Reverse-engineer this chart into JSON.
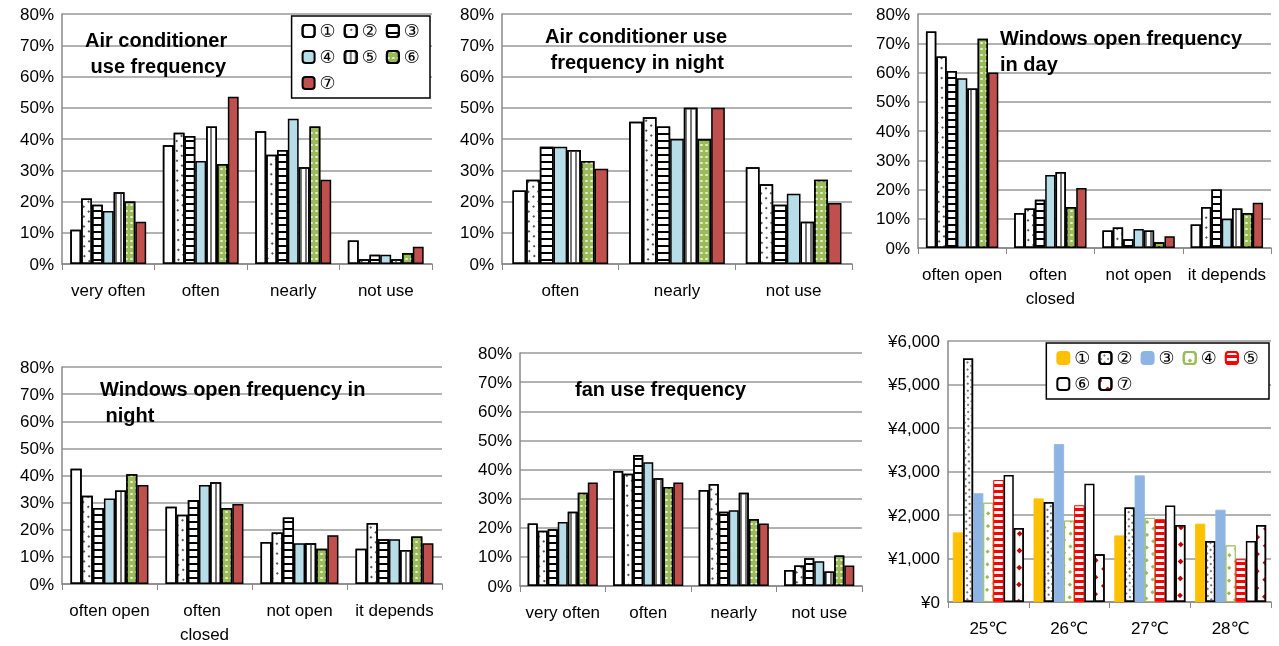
{
  "chart_data": [
    {
      "type": "bar",
      "title": "Air conditioner use frequency",
      "categories": [
        "very often",
        "often",
        "nearly",
        "not use"
      ],
      "series": [
        {
          "name": "①",
          "color": "#ffffff",
          "values": [
            11,
            38,
            42.5,
            7.5
          ]
        },
        {
          "name": "②",
          "color": "#ffffff",
          "values": [
            21,
            42,
            35,
            1.5
          ]
        },
        {
          "name": "③",
          "color": "#ffffff",
          "values": [
            19,
            41,
            36.5,
            3
          ]
        },
        {
          "name": "④",
          "color": "#b7dde8",
          "values": [
            17,
            33,
            46.5,
            3
          ]
        },
        {
          "name": "⑤",
          "color": "#ffffff",
          "values": [
            23,
            44,
            31,
            1.5
          ]
        },
        {
          "name": "⑥",
          "color": "#9bbb59",
          "values": [
            20,
            32,
            44,
            3.5
          ]
        },
        {
          "name": "⑦",
          "color": "#c0504d",
          "values": [
            13.5,
            53.5,
            27,
            5.5
          ]
        }
      ],
      "ylim": [
        0,
        80
      ],
      "yticks": [
        {
          "value": 0,
          "label": "0%"
        },
        {
          "value": 10,
          "label": "10%"
        },
        {
          "value": 20,
          "label": "20%"
        },
        {
          "value": 30,
          "label": "30%"
        },
        {
          "value": 40,
          "label": "40%"
        },
        {
          "value": 50,
          "label": "50%"
        },
        {
          "value": 60,
          "label": "60%"
        },
        {
          "value": 70,
          "label": "70%"
        },
        {
          "value": 80,
          "label": "80%"
        }
      ],
      "grid": "y",
      "legend": "top right"
    },
    {
      "type": "bar",
      "title": "Air conditioner use frequency in night",
      "categories": [
        "often",
        "nearly",
        "not use"
      ],
      "series": [
        {
          "color": "#ffffff",
          "values": [
            23.5,
            45.5,
            31
          ]
        },
        {
          "color": "#ffffff",
          "values": [
            27,
            47,
            25.5
          ]
        },
        {
          "color": "#ffffff",
          "values": [
            37.5,
            44,
            19
          ]
        },
        {
          "color": "#b7dde8",
          "values": [
            37.5,
            40,
            22.5
          ]
        },
        {
          "color": "#ffffff",
          "values": [
            36.5,
            50,
            13.5
          ]
        },
        {
          "color": "#9bbb59",
          "values": [
            33,
            40,
            27
          ]
        },
        {
          "color": "#c0504d",
          "values": [
            30.5,
            50,
            19.5
          ]
        }
      ],
      "ylim": [
        0,
        80
      ],
      "yticks": [
        {
          "value": 0,
          "label": "0%"
        },
        {
          "value": 10,
          "label": "10%"
        },
        {
          "value": 20,
          "label": "20%"
        },
        {
          "value": 30,
          "label": "30%"
        },
        {
          "value": 40,
          "label": "40%"
        },
        {
          "value": 50,
          "label": "50%"
        },
        {
          "value": 60,
          "label": "60%"
        },
        {
          "value": 70,
          "label": "70%"
        },
        {
          "value": 80,
          "label": "80%"
        }
      ],
      "grid": "y"
    },
    {
      "type": "bar",
      "title": "Windows open frequency in day",
      "categories": [
        "often open",
        "often closed",
        "not open",
        "it depends"
      ],
      "series": [
        {
          "color": "#ffffff",
          "values": [
            74,
            12,
            6,
            8
          ]
        },
        {
          "color": "#ffffff",
          "values": [
            65.5,
            13.5,
            7,
            14
          ]
        },
        {
          "color": "#ffffff",
          "values": [
            60.5,
            16.5,
            3,
            20
          ]
        },
        {
          "color": "#b7dde8",
          "values": [
            58,
            25,
            6.5,
            10
          ]
        },
        {
          "color": "#ffffff",
          "values": [
            54.5,
            26,
            6,
            13.5
          ]
        },
        {
          "color": "#9bbb59",
          "values": [
            71.5,
            14,
            2,
            12
          ]
        },
        {
          "color": "#c0504d",
          "values": [
            60,
            20.5,
            4,
            15.5
          ]
        }
      ],
      "ylim": [
        0,
        80
      ],
      "yticks": [
        {
          "value": 0,
          "label": "0%"
        },
        {
          "value": 10,
          "label": "10%"
        },
        {
          "value": 20,
          "label": "20%"
        },
        {
          "value": 30,
          "label": "30%"
        },
        {
          "value": 40,
          "label": "40%"
        },
        {
          "value": 50,
          "label": "50%"
        },
        {
          "value": 60,
          "label": "60%"
        },
        {
          "value": 70,
          "label": "70%"
        },
        {
          "value": 80,
          "label": "80%"
        }
      ],
      "grid": "y"
    },
    {
      "type": "bar",
      "title": "Windows open frequency in night",
      "categories": [
        "often open",
        "often closed",
        "not open",
        "it depends"
      ],
      "series": [
        {
          "color": "#ffffff",
          "values": [
            42.5,
            28.5,
            15.5,
            13
          ]
        },
        {
          "color": "#ffffff",
          "values": [
            32.5,
            25.5,
            19,
            22.5
          ]
        },
        {
          "color": "#ffffff",
          "values": [
            28,
            31,
            24.5,
            16.5
          ]
        },
        {
          "color": "#b7dde8",
          "values": [
            31.5,
            36.5,
            15,
            16.5
          ]
        },
        {
          "color": "#ffffff",
          "values": [
            34.5,
            37.5,
            15,
            12.5
          ]
        },
        {
          "color": "#9bbb59",
          "values": [
            40.5,
            28,
            13,
            17.5
          ]
        },
        {
          "color": "#c0504d",
          "values": [
            36.5,
            29.5,
            18,
            15
          ]
        }
      ],
      "ylim": [
        0,
        80
      ],
      "yticks": [
        {
          "value": 0,
          "label": "0%"
        },
        {
          "value": 10,
          "label": "10%"
        },
        {
          "value": 20,
          "label": "20%"
        },
        {
          "value": 30,
          "label": "30%"
        },
        {
          "value": 40,
          "label": "40%"
        },
        {
          "value": 50,
          "label": "50%"
        },
        {
          "value": 60,
          "label": "60%"
        },
        {
          "value": 70,
          "label": "70%"
        },
        {
          "value": 80,
          "label": "80%"
        }
      ],
      "grid": "y"
    },
    {
      "type": "bar",
      "title": "fan use frequency",
      "categories": [
        "very often",
        "often",
        "nearly",
        "not use"
      ],
      "series": [
        {
          "color": "#ffffff",
          "values": [
            21.5,
            39.5,
            33,
            5.5
          ]
        },
        {
          "color": "#ffffff",
          "values": [
            19,
            38.5,
            35,
            7
          ]
        },
        {
          "color": "#ffffff",
          "values": [
            19.5,
            45,
            25.5,
            9.5
          ]
        },
        {
          "color": "#b7dde8",
          "values": [
            22,
            42.5,
            26,
            8.5
          ]
        },
        {
          "color": "#ffffff",
          "values": [
            25.5,
            37,
            32,
            5
          ]
        },
        {
          "color": "#9bbb59",
          "values": [
            32,
            34,
            23,
            10.5
          ]
        },
        {
          "color": "#c0504d",
          "values": [
            35.5,
            35.5,
            21.5,
            7
          ]
        }
      ],
      "ylim": [
        0,
        80
      ],
      "yticks": [
        {
          "value": 0,
          "label": "0%"
        },
        {
          "value": 10,
          "label": "10%"
        },
        {
          "value": 20,
          "label": "20%"
        },
        {
          "value": 30,
          "label": "30%"
        },
        {
          "value": 40,
          "label": "40%"
        },
        {
          "value": 50,
          "label": "50%"
        },
        {
          "value": 60,
          "label": "60%"
        },
        {
          "value": 70,
          "label": "70%"
        },
        {
          "value": 80,
          "label": "80%"
        }
      ],
      "grid": "y"
    },
    {
      "type": "bar",
      "categories": [
        "25℃",
        "26℃",
        "27℃",
        "28℃"
      ],
      "series": [
        {
          "name": "①",
          "color": "#ffc000",
          "values": [
            1600,
            2380,
            1530,
            1800
          ]
        },
        {
          "name": "②",
          "color": "#ffffff",
          "values": [
            5600,
            2300,
            2170,
            1400
          ]
        },
        {
          "name": "③",
          "color": "#8db4e2",
          "values": [
            2500,
            3630,
            2910,
            2120
          ]
        },
        {
          "name": "④",
          "color": "#ffffff",
          "values": [
            2280,
            1870,
            1930,
            1300
          ]
        },
        {
          "name": "⑤",
          "color": "#ff0000",
          "values": [
            2800,
            2220,
            1900,
            980
          ]
        },
        {
          "name": "⑥",
          "color": "#ffffff",
          "values": [
            2920,
            2720,
            2220,
            1400
          ]
        },
        {
          "name": "⑦",
          "color": "#ffffff",
          "values": [
            1700,
            1100,
            1770,
            1770
          ]
        }
      ],
      "ylim": [
        0,
        6000
      ],
      "yticks": [
        {
          "value": 0,
          "label": "¥0"
        },
        {
          "value": 1000,
          "label": "¥1,000"
        },
        {
          "value": 2000,
          "label": "¥2,000"
        },
        {
          "value": 3000,
          "label": "¥3,000"
        },
        {
          "value": 4000,
          "label": "¥4,000"
        },
        {
          "value": 5000,
          "label": "¥5,000"
        },
        {
          "value": 6000,
          "label": "¥6,000"
        }
      ],
      "grid": "y",
      "legend": "top right"
    }
  ]
}
